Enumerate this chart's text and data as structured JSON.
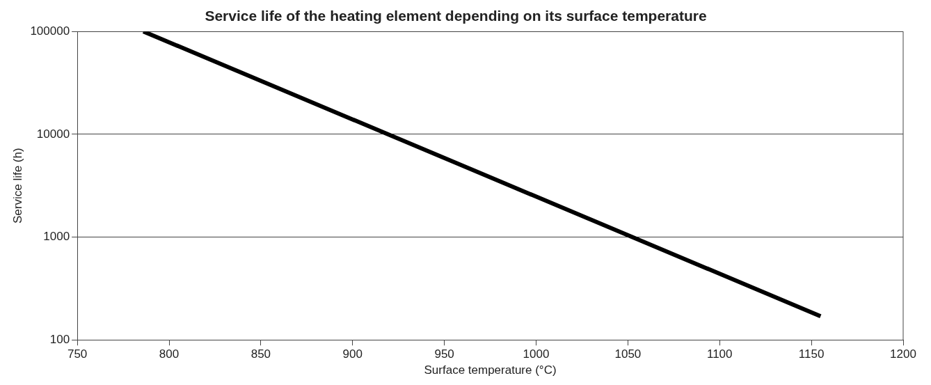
{
  "chart_data": {
    "type": "line",
    "title": "Service life of the heating element depending on its surface temperature",
    "xlabel": "Surface temperature (°C)",
    "ylabel": "Service life (h)",
    "x": [
      786,
      1155
    ],
    "series": [
      {
        "color": "#000000",
        "values": [
          100000,
          170
        ]
      }
    ],
    "xlim": [
      750,
      1200
    ],
    "xticks": [
      750,
      800,
      850,
      900,
      950,
      1000,
      1050,
      1100,
      1150,
      1200
    ],
    "ylim": [
      100,
      100000
    ],
    "yticks": [
      100,
      1000,
      10000,
      100000
    ],
    "log": "y",
    "grid": "y",
    "legend": false,
    "marker": "none",
    "line_style": "solid"
  }
}
